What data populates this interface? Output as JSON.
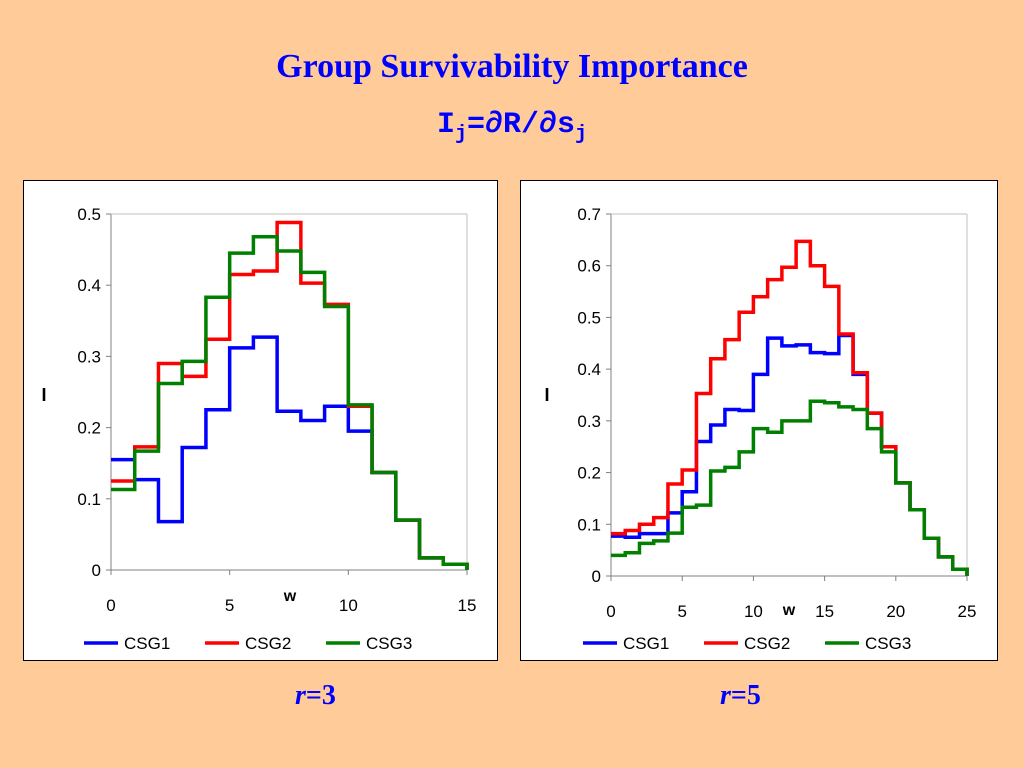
{
  "slide": {
    "title": "Group Survivability Importance",
    "formula_main": "I",
    "formula_sub1": "j",
    "formula_mid": "=∂R/∂s",
    "formula_sub2": "j",
    "left_label_var": "r",
    "left_label_val": "=3",
    "right_label_var": "r",
    "right_label_val": "=5"
  },
  "colors": {
    "CSG1": "#0000ff",
    "CSG2": "#ff0000",
    "CSG3": "#008000"
  },
  "chart_data": [
    {
      "type": "line",
      "step": true,
      "xlabel": "w",
      "ylabel": "I",
      "xlim": [
        0,
        15
      ],
      "ylim": [
        0,
        0.5
      ],
      "xticks": [
        0,
        5,
        10,
        15
      ],
      "yticks": [
        0,
        0.1,
        0.2,
        0.3,
        0.4,
        0.5
      ],
      "ytick_labels": [
        "0",
        "0.1",
        "0.2",
        "0.3",
        "0.4",
        "0.5"
      ],
      "legend": "bottom",
      "series": [
        {
          "name": "CSG1",
          "x": [
            0,
            1,
            2,
            3,
            4,
            5,
            6,
            7,
            8,
            9,
            10,
            11,
            12,
            13,
            14,
            15
          ],
          "values": [
            0.155,
            0.127,
            0.068,
            0.172,
            0.225,
            0.312,
            0.327,
            0.223,
            0.21,
            0.23,
            0.195,
            0.137,
            0.07,
            0.017,
            0.008,
            0.0
          ]
        },
        {
          "name": "CSG2",
          "x": [
            0,
            1,
            2,
            3,
            4,
            5,
            6,
            7,
            8,
            9,
            10,
            11,
            12,
            13,
            14,
            15
          ],
          "values": [
            0.125,
            0.173,
            0.29,
            0.272,
            0.324,
            0.415,
            0.42,
            0.488,
            0.403,
            0.373,
            0.23,
            0.137,
            0.07,
            0.017,
            0.008,
            0.0
          ]
        },
        {
          "name": "CSG3",
          "x": [
            0,
            1,
            2,
            3,
            4,
            5,
            6,
            7,
            8,
            9,
            10,
            11,
            12,
            13,
            14,
            15
          ],
          "values": [
            0.113,
            0.167,
            0.262,
            0.293,
            0.383,
            0.445,
            0.468,
            0.448,
            0.418,
            0.37,
            0.232,
            0.137,
            0.07,
            0.017,
            0.008,
            0.0
          ]
        }
      ]
    },
    {
      "type": "line",
      "step": true,
      "xlabel": "w",
      "ylabel": "I",
      "xlim": [
        0,
        25
      ],
      "ylim": [
        0,
        0.7
      ],
      "xticks": [
        0,
        5,
        10,
        15,
        20,
        25
      ],
      "yticks": [
        0,
        0.1,
        0.2,
        0.3,
        0.4,
        0.5,
        0.6,
        0.7
      ],
      "ytick_labels": [
        "0",
        "0.1",
        "0.2",
        "0.3",
        "0.4",
        "0.5",
        "0.6",
        "0.7"
      ],
      "legend": "bottom",
      "series": [
        {
          "name": "CSG1",
          "x": [
            0,
            1,
            2,
            3,
            4,
            5,
            6,
            7,
            8,
            9,
            10,
            11,
            12,
            13,
            14,
            15,
            16,
            17,
            18,
            19,
            20,
            21,
            22,
            23,
            24,
            25
          ],
          "values": [
            0.077,
            0.075,
            0.082,
            0.082,
            0.122,
            0.163,
            0.26,
            0.292,
            0.322,
            0.32,
            0.39,
            0.46,
            0.445,
            0.447,
            0.432,
            0.43,
            0.465,
            0.39,
            0.315,
            0.25,
            0.18,
            0.128,
            0.073,
            0.037,
            0.013,
            0.0
          ]
        },
        {
          "name": "CSG2",
          "x": [
            0,
            1,
            2,
            3,
            4,
            5,
            6,
            7,
            8,
            9,
            10,
            11,
            12,
            13,
            14,
            15,
            16,
            17,
            18,
            19,
            20,
            21,
            22,
            23,
            24,
            25
          ],
          "values": [
            0.082,
            0.088,
            0.1,
            0.113,
            0.178,
            0.205,
            0.353,
            0.42,
            0.457,
            0.51,
            0.54,
            0.573,
            0.597,
            0.647,
            0.6,
            0.56,
            0.468,
            0.393,
            0.315,
            0.25,
            0.18,
            0.128,
            0.073,
            0.037,
            0.013,
            0.0
          ]
        },
        {
          "name": "CSG3",
          "x": [
            0,
            1,
            2,
            3,
            4,
            5,
            6,
            7,
            8,
            9,
            10,
            11,
            12,
            13,
            14,
            15,
            16,
            17,
            18,
            19,
            20,
            21,
            22,
            23,
            24,
            25
          ],
          "values": [
            0.04,
            0.045,
            0.063,
            0.068,
            0.083,
            0.133,
            0.137,
            0.203,
            0.21,
            0.24,
            0.285,
            0.278,
            0.3,
            0.3,
            0.338,
            0.335,
            0.327,
            0.322,
            0.285,
            0.24,
            0.18,
            0.128,
            0.073,
            0.037,
            0.013,
            0.0
          ]
        }
      ]
    }
  ]
}
